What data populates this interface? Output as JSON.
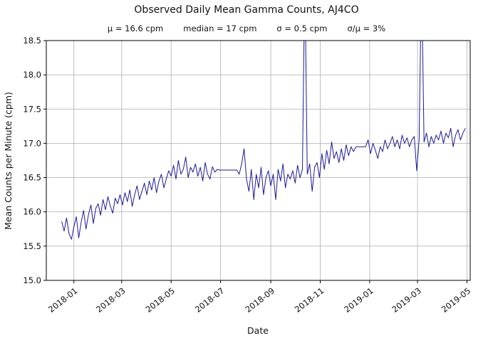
{
  "chart_data": {
    "type": "line",
    "title": "Observed Daily Mean Gamma Counts, AJ4CO",
    "stats": {
      "mu": "μ = 16.6 cpm",
      "median": "median = 17 cpm",
      "sigma": "σ = 0.5 cpm",
      "ratio": "σ/μ = 3%"
    },
    "xlabel": "Date",
    "ylabel": "Mean Counts per Minute (cpm)",
    "ylim": [
      15.0,
      18.5
    ],
    "y_ticks": [
      15.0,
      15.5,
      16.0,
      16.5,
      17.0,
      17.5,
      18.0,
      18.5
    ],
    "x_axis_days": 523,
    "x_ticks": [
      {
        "label": "2018-01",
        "day": 34
      },
      {
        "label": "2018-03",
        "day": 93
      },
      {
        "label": "2018-05",
        "day": 154
      },
      {
        "label": "2018-07",
        "day": 215
      },
      {
        "label": "2018-09",
        "day": 277
      },
      {
        "label": "2018-11",
        "day": 338
      },
      {
        "label": "2019-01",
        "day": 399
      },
      {
        "label": "2019-03",
        "day": 458
      },
      {
        "label": "2019-05",
        "day": 519
      }
    ],
    "grid": true,
    "legend": "none",
    "line_color": "#1a1a9c",
    "grid_color": "#b8b8b8",
    "series": {
      "name": "daily mean gamma counts (cpm)",
      "x_start": "2017-12-17",
      "start_day": 19,
      "step_days": 3,
      "spikes_offscale": [
        {
          "date": "2018-10-13",
          "value_clipped_above": 18.5
        },
        {
          "date": "2019-03-06",
          "value_clipped_above": 18.5
        }
      ],
      "values": [
        15.86,
        15.72,
        15.91,
        15.68,
        15.6,
        15.78,
        15.93,
        15.62,
        15.85,
        16.02,
        15.75,
        15.96,
        16.1,
        15.83,
        16.05,
        16.12,
        15.95,
        16.18,
        16.03,
        16.22,
        16.08,
        15.98,
        16.2,
        16.12,
        16.25,
        16.1,
        16.28,
        16.15,
        16.32,
        16.08,
        16.25,
        16.38,
        16.18,
        16.3,
        16.42,
        16.25,
        16.45,
        16.32,
        16.5,
        16.28,
        16.45,
        16.55,
        16.35,
        16.48,
        16.6,
        16.52,
        16.68,
        16.48,
        16.75,
        16.55,
        16.62,
        16.8,
        16.5,
        16.65,
        16.58,
        16.7,
        16.52,
        16.65,
        16.45,
        16.72,
        16.55,
        16.48,
        16.66,
        16.58,
        16.62,
        16.61,
        16.61,
        16.61,
        16.61,
        16.61,
        16.61,
        16.61,
        16.61,
        16.55,
        16.7,
        16.92,
        16.48,
        16.3,
        16.62,
        16.18,
        16.55,
        16.35,
        16.65,
        16.25,
        16.5,
        16.6,
        16.38,
        16.55,
        16.18,
        16.62,
        16.45,
        16.7,
        16.35,
        16.55,
        16.48,
        16.6,
        16.42,
        16.68,
        16.5,
        16.62,
        19.5,
        16.55,
        16.7,
        16.3,
        16.65,
        16.72,
        16.5,
        16.85,
        16.62,
        16.9,
        16.7,
        17.02,
        16.78,
        16.88,
        16.72,
        16.92,
        16.75,
        16.98,
        16.82,
        16.95,
        16.88,
        16.95,
        16.95,
        16.95,
        16.95,
        16.95,
        17.05,
        16.85,
        17.0,
        16.9,
        16.78,
        16.95,
        16.88,
        17.05,
        16.92,
        17.0,
        17.1,
        16.95,
        17.05,
        16.92,
        17.12,
        17.0,
        17.08,
        16.95,
        17.05,
        17.1,
        16.6,
        17.05,
        19.5,
        17.02,
        17.15,
        16.95,
        17.1,
        17.0,
        17.12,
        17.05,
        17.18,
        17.0,
        17.15,
        17.08,
        17.22,
        16.95,
        17.12,
        17.2,
        17.05,
        17.15,
        17.22
      ]
    }
  }
}
